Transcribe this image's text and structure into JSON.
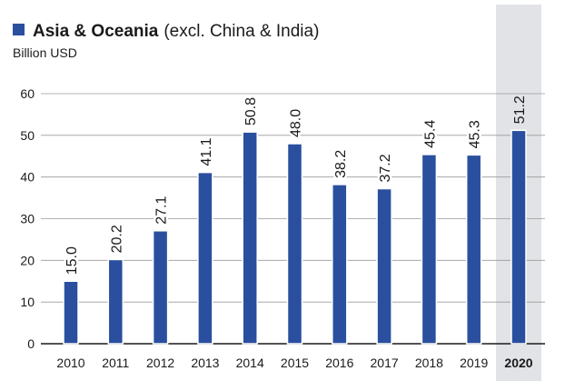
{
  "chart_data": {
    "type": "bar",
    "title": "Asia & Oceania",
    "title_note": "(excl. China & India)",
    "subtitle": "Billion USD",
    "categories": [
      "2010",
      "2011",
      "2012",
      "2013",
      "2014",
      "2015",
      "2016",
      "2017",
      "2018",
      "2019",
      "2020"
    ],
    "values": [
      15.0,
      20.2,
      27.1,
      41.1,
      50.8,
      48.0,
      38.2,
      37.2,
      45.4,
      45.3,
      51.2
    ],
    "value_labels": [
      "15.0",
      "20.2",
      "27.1",
      "41.1",
      "50.8",
      "48.0",
      "38.2",
      "37.2",
      "45.4",
      "45.3",
      "51.2"
    ],
    "color": "#2a4f9f",
    "highlight": "2020",
    "highlight_color": "#e1e3e6",
    "ylim": [
      0,
      60
    ],
    "yticks": [
      0,
      10,
      20,
      30,
      40,
      50,
      60
    ],
    "grid": true
  }
}
